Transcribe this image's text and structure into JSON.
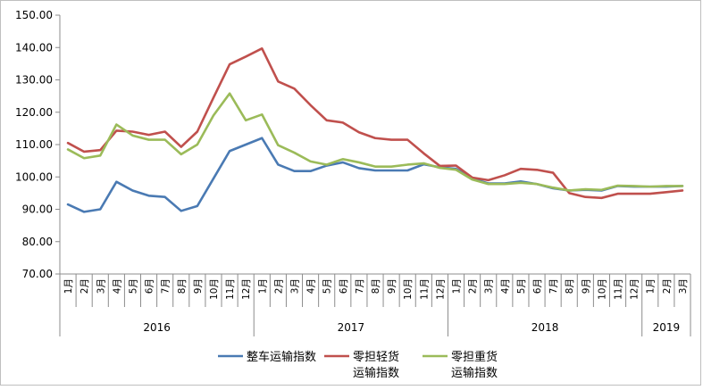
{
  "chart_data": {
    "type": "line",
    "title": "",
    "xlabel": "",
    "ylabel": "",
    "ylim": [
      70,
      150
    ],
    "yticks": [
      "70.00",
      "80.00",
      "90.00",
      "100.00",
      "110.00",
      "120.00",
      "130.00",
      "140.00",
      "150.00"
    ],
    "grid": false,
    "legend_position": "bottom",
    "categories": [
      "1月",
      "2月",
      "3月",
      "4月",
      "5月",
      "6月",
      "7月",
      "8月",
      "9月",
      "10月",
      "11月",
      "12月",
      "1月",
      "2月",
      "3月",
      "4月",
      "5月",
      "6月",
      "7月",
      "8月",
      "9月",
      "10月",
      "11月",
      "12月",
      "1月",
      "2月",
      "3月",
      "4月",
      "5月",
      "6月",
      "7月",
      "8月",
      "9月",
      "10月",
      "11月",
      "12月",
      "1月",
      "2月",
      "3月"
    ],
    "years": [
      {
        "label": "2016",
        "months": 12
      },
      {
        "label": "2017",
        "months": 12
      },
      {
        "label": "2018",
        "months": 12
      },
      {
        "label": "2019",
        "months": 3
      }
    ],
    "series": [
      {
        "name": "整车运输指数",
        "name_lines": [
          "整车运输指数"
        ],
        "color": "#4a7ab3",
        "values": [
          91.5,
          89.2,
          90.0,
          98.5,
          95.8,
          94.2,
          93.8,
          89.5,
          91.0,
          99.5,
          108.0,
          110.0,
          112.0,
          103.8,
          101.8,
          101.8,
          103.5,
          104.5,
          102.7,
          102.0,
          102.0,
          102.0,
          103.9,
          103.0,
          102.5,
          99.5,
          98.0,
          98.0,
          98.6,
          97.8,
          96.5,
          95.8,
          96.0,
          95.8,
          97.2,
          97.0,
          97.0,
          97.0,
          97.2
        ]
      },
      {
        "name": "零担轻货运输指数",
        "name_lines": [
          "零担轻货",
          "运输指数"
        ],
        "color": "#c0504d",
        "values": [
          110.5,
          107.8,
          108.3,
          114.3,
          114.0,
          113.0,
          114.0,
          109.3,
          114.0,
          124.5,
          134.8,
          137.2,
          139.7,
          129.5,
          127.3,
          122.2,
          117.5,
          116.8,
          113.8,
          112.0,
          111.5,
          111.5,
          107.3,
          103.4,
          103.5,
          99.8,
          99.0,
          100.5,
          102.5,
          102.2,
          101.3,
          95.0,
          93.8,
          93.5,
          94.8,
          94.8,
          94.8,
          95.3,
          95.8
        ]
      },
      {
        "name": "零担重货运输指数",
        "name_lines": [
          "零担重货",
          "运输指数"
        ],
        "color": "#9bbb59",
        "values": [
          108.5,
          105.8,
          106.6,
          116.2,
          112.8,
          111.5,
          111.5,
          107.0,
          110.0,
          119.0,
          125.8,
          117.5,
          119.3,
          109.8,
          107.5,
          104.8,
          103.8,
          105.5,
          104.5,
          103.2,
          103.2,
          103.8,
          104.2,
          102.8,
          102.2,
          99.2,
          97.8,
          97.8,
          98.2,
          97.8,
          96.7,
          95.8,
          96.2,
          96.0,
          97.3,
          97.2,
          97.0,
          97.2,
          97.2
        ]
      }
    ]
  }
}
